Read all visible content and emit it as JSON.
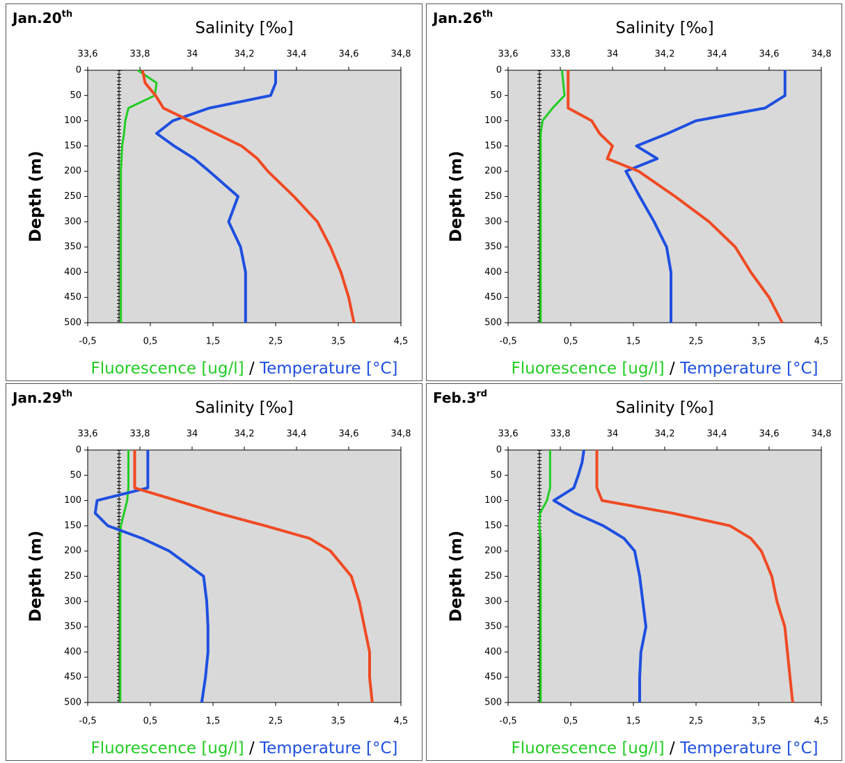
{
  "chart_data": [
    {
      "type": "line",
      "title": "Jan.20",
      "title_sup": "th",
      "x2label": "Salinity [‰]",
      "xlabel": [
        "Fluorescence [ug/l]",
        "/",
        "Temperature [°C]"
      ],
      "ylabel": "Depth (m)",
      "xlim": [
        -0.5,
        4.5
      ],
      "xticks": [
        {
          "value": -0.5,
          "label": "-0,5"
        },
        {
          "value": 0.5,
          "label": "0,5"
        },
        {
          "value": 1.5,
          "label": "1,5"
        },
        {
          "value": 2.5,
          "label": "2,5"
        },
        {
          "value": 3.5,
          "label": "3,5"
        },
        {
          "value": 4.5,
          "label": "4,5"
        }
      ],
      "x2lim": [
        33.6,
        34.8
      ],
      "x2ticks": [
        {
          "value": 33.6,
          "label": "33,6"
        },
        {
          "value": 33.8,
          "label": "33,8"
        },
        34,
        {
          "value": 34.2,
          "label": "34,2"
        },
        {
          "value": 34.4,
          "label": "34,4"
        },
        {
          "value": 34.6,
          "label": "34,6"
        },
        {
          "value": 34.8,
          "label": "34,8"
        }
      ],
      "ylim": [
        0,
        500
      ],
      "y_inverted": true,
      "yticks": [
        0,
        50,
        100,
        150,
        200,
        250,
        300,
        350,
        400,
        450,
        500
      ],
      "y": [
        0,
        25,
        50,
        75,
        100,
        125,
        150,
        175,
        200,
        250,
        300,
        350,
        400,
        450,
        500
      ],
      "series": [
        {
          "color": "#22cc22",
          "axis": "x",
          "values": [
            0.3,
            0.6,
            0.57,
            0.15,
            0.1,
            0.08,
            0.05,
            0.04,
            0.03,
            0.03,
            0.03,
            0.03,
            0.03,
            0.03,
            0.03
          ]
        },
        {
          "color": "#1e4fe0",
          "axis": "x",
          "values": [
            2.5,
            2.5,
            2.42,
            1.44,
            0.86,
            0.6,
            0.88,
            1.2,
            1.44,
            1.9,
            1.75,
            1.94,
            2.02,
            2.02,
            2.02
          ]
        },
        {
          "color": "#f04a23",
          "axis": "x2",
          "values": [
            33.81,
            33.82,
            33.86,
            33.89,
            33.99,
            34.09,
            34.19,
            34.25,
            34.29,
            34.39,
            34.48,
            34.53,
            34.57,
            34.6,
            34.62
          ]
        }
      ]
    },
    {
      "type": "line",
      "title": "Jan.26",
      "title_sup": "th",
      "x2label": "Salinity [‰]",
      "xlabel": [
        "Fluorescence [ug/l]",
        "/",
        "Temperature [°C]"
      ],
      "ylabel": "Depth (m)",
      "xlim": [
        -0.5,
        4.5
      ],
      "xticks": [
        {
          "value": -0.5,
          "label": "-0,5"
        },
        {
          "value": 0.5,
          "label": "0,5"
        },
        {
          "value": 1.5,
          "label": "1,5"
        },
        {
          "value": 2.5,
          "label": "2,5"
        },
        {
          "value": 3.5,
          "label": "3,5"
        },
        {
          "value": 4.5,
          "label": "4,5"
        }
      ],
      "x2lim": [
        33.6,
        34.8
      ],
      "x2ticks": [
        {
          "value": 33.6,
          "label": "33,6"
        },
        {
          "value": 33.8,
          "label": "33,8"
        },
        34,
        {
          "value": 34.2,
          "label": "34,2"
        },
        {
          "value": 34.4,
          "label": "34,4"
        },
        {
          "value": 34.6,
          "label": "34,6"
        },
        {
          "value": 34.8,
          "label": "34,8"
        }
      ],
      "ylim": [
        0,
        500
      ],
      "y_inverted": true,
      "yticks": [
        0,
        50,
        100,
        150,
        200,
        250,
        300,
        350,
        400,
        450,
        500
      ],
      "y": [
        0,
        25,
        50,
        75,
        100,
        125,
        150,
        175,
        200,
        250,
        300,
        350,
        400,
        450,
        500
      ],
      "series": [
        {
          "color": "#22cc22",
          "axis": "x",
          "values": [
            0.36,
            0.38,
            0.4,
            0.21,
            0.05,
            0.02,
            0.02,
            0.02,
            0.02,
            0.02,
            0.02,
            0.02,
            0.02,
            0.02,
            0.02
          ]
        },
        {
          "color": "#1e4fe0",
          "axis": "x",
          "values": [
            3.92,
            3.92,
            3.92,
            3.6,
            2.5,
            2.05,
            1.55,
            1.88,
            1.38,
            1.6,
            1.83,
            2.03,
            2.1,
            2.1,
            2.1
          ]
        },
        {
          "color": "#f04a23",
          "axis": "x2",
          "values": [
            33.83,
            33.83,
            33.83,
            33.83,
            33.92,
            33.95,
            34.0,
            33.98,
            34.1,
            34.24,
            34.37,
            34.47,
            34.53,
            34.6,
            34.65
          ]
        }
      ]
    },
    {
      "type": "line",
      "title": "Jan.29",
      "title_sup": "th",
      "x2label": "Salinity [‰]",
      "xlabel": [
        "Fluorescence [ug/l]",
        "/",
        "Temperature [°C]"
      ],
      "ylabel": "Depth (m)",
      "xlim": [
        -0.5,
        4.5
      ],
      "xticks": [
        {
          "value": -0.5,
          "label": "-0,5"
        },
        {
          "value": 0.5,
          "label": "0,5"
        },
        {
          "value": 1.5,
          "label": "1,5"
        },
        {
          "value": 2.5,
          "label": "2,5"
        },
        {
          "value": 3.5,
          "label": "3,5"
        },
        {
          "value": 4.5,
          "label": "4,5"
        }
      ],
      "x2lim": [
        33.6,
        34.8
      ],
      "x2ticks": [
        {
          "value": 33.6,
          "label": "33,6"
        },
        {
          "value": 33.8,
          "label": "33,8"
        },
        34,
        {
          "value": 34.2,
          "label": "34,2"
        },
        {
          "value": 34.4,
          "label": "34,4"
        },
        {
          "value": 34.6,
          "label": "34,6"
        },
        {
          "value": 34.8,
          "label": "34,8"
        }
      ],
      "ylim": [
        0,
        500
      ],
      "y_inverted": true,
      "yticks": [
        0,
        50,
        100,
        150,
        200,
        250,
        300,
        350,
        400,
        450,
        500
      ],
      "y": [
        0,
        25,
        50,
        75,
        100,
        125,
        150,
        175,
        200,
        250,
        300,
        350,
        400,
        450,
        500
      ],
      "series": [
        {
          "color": "#22cc22",
          "axis": "x",
          "values": [
            0.15,
            0.15,
            0.15,
            0.15,
            0.13,
            0.08,
            0.03,
            0.02,
            0.02,
            0.02,
            0.02,
            0.02,
            0.02,
            0.02,
            0.02
          ]
        },
        {
          "color": "#1e4fe0",
          "axis": "x",
          "values": [
            0.46,
            0.46,
            0.46,
            0.46,
            -0.35,
            -0.38,
            -0.18,
            0.37,
            0.8,
            1.35,
            1.4,
            1.42,
            1.42,
            1.38,
            1.32
          ]
        },
        {
          "color": "#f04a23",
          "axis": "x2",
          "values": [
            33.78,
            33.78,
            33.78,
            33.78,
            33.94,
            34.1,
            34.28,
            34.45,
            34.53,
            34.61,
            34.64,
            34.66,
            34.68,
            34.68,
            34.69
          ]
        }
      ]
    },
    {
      "type": "line",
      "title": "Feb.3",
      "title_sup": "rd",
      "x2label": "Salinity [‰]",
      "xlabel": [
        "Fluorescence [ug/l]",
        "/",
        "Temperature [°C]"
      ],
      "ylabel": "Depth (m)",
      "xlim": [
        -0.5,
        4.5
      ],
      "xticks": [
        {
          "value": -0.5,
          "label": "-0,5"
        },
        {
          "value": 0.5,
          "label": "0,5"
        },
        {
          "value": 1.5,
          "label": "1,5"
        },
        {
          "value": 2.5,
          "label": "2,5"
        },
        {
          "value": 3.5,
          "label": "3,5"
        },
        {
          "value": 4.5,
          "label": "4,5"
        }
      ],
      "x2lim": [
        33.6,
        34.8
      ],
      "x2ticks": [
        {
          "value": 33.6,
          "label": "33,6"
        },
        {
          "value": 33.8,
          "label": "33,8"
        },
        34,
        {
          "value": 34.2,
          "label": "34,2"
        },
        {
          "value": 34.4,
          "label": "34,4"
        },
        {
          "value": 34.6,
          "label": "34,6"
        },
        {
          "value": 34.8,
          "label": "34,8"
        }
      ],
      "ylim": [
        0,
        500
      ],
      "y_inverted": true,
      "yticks": [
        0,
        50,
        100,
        150,
        200,
        250,
        300,
        350,
        400,
        450,
        500
      ],
      "y": [
        0,
        25,
        50,
        75,
        100,
        125,
        150,
        175,
        200,
        250,
        300,
        350,
        400,
        450,
        500
      ],
      "series": [
        {
          "color": "#22cc22",
          "axis": "x",
          "values": [
            0.17,
            0.17,
            0.17,
            0.17,
            0.12,
            0.01,
            0.0,
            0.02,
            0.02,
            0.02,
            0.02,
            0.02,
            0.02,
            0.02,
            0.02
          ]
        },
        {
          "color": "#1e4fe0",
          "axis": "x",
          "values": [
            0.71,
            0.68,
            0.62,
            0.55,
            0.23,
            0.57,
            1.02,
            1.35,
            1.52,
            1.6,
            1.65,
            1.7,
            1.62,
            1.6,
            1.6
          ]
        },
        {
          "color": "#f04a23",
          "axis": "x2",
          "values": [
            33.94,
            33.94,
            33.94,
            33.94,
            33.96,
            34.23,
            34.45,
            34.53,
            34.57,
            34.61,
            34.63,
            34.66,
            34.67,
            34.68,
            34.69
          ]
        }
      ]
    }
  ]
}
